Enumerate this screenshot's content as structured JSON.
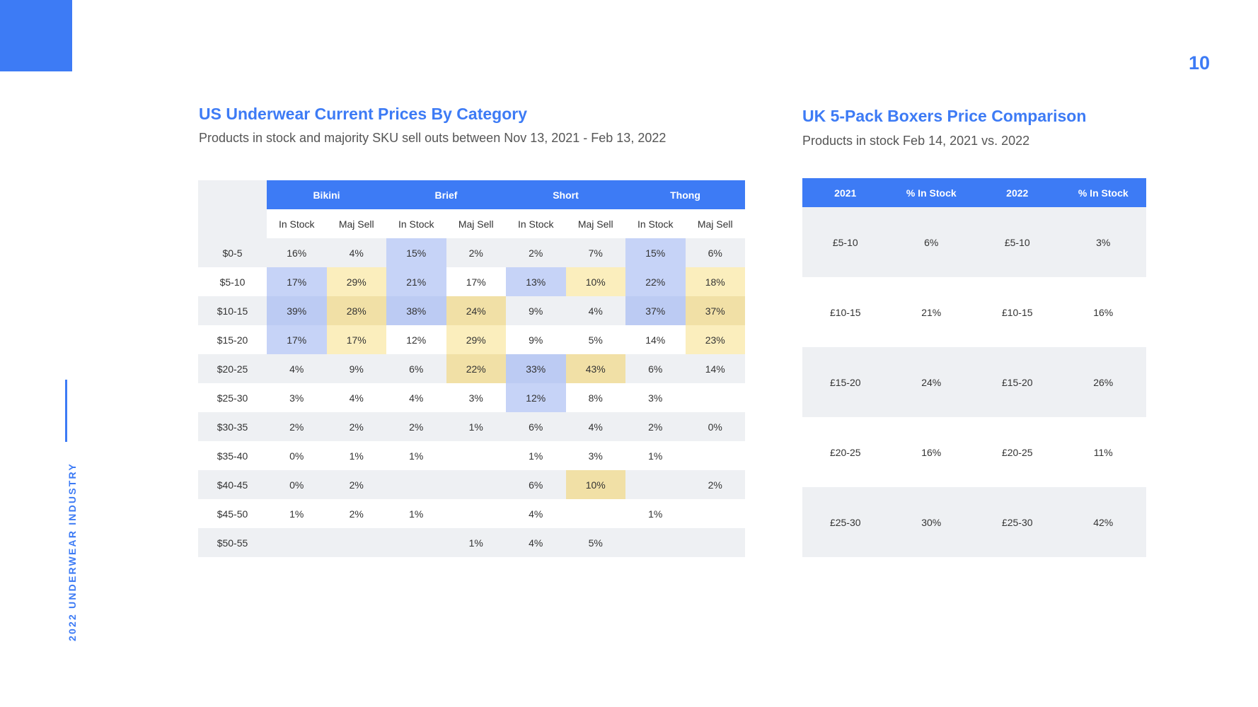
{
  "page": {
    "number": "10",
    "side_label": "2022 UNDERWEAR INDUSTRY",
    "accent": "#3d7bf5"
  },
  "us": {
    "title": "US Underwear Current Prices By Category",
    "subtitle": "Products in stock and majority SKU sell outs between Nov 13, 2021 - Feb 13, 2022",
    "categories": [
      "Bikini",
      "Brief",
      "Short",
      "Thong"
    ],
    "subheaders": [
      "In Stock",
      "Maj Sell",
      "In Stock",
      "Maj Sell",
      "In Stock",
      "Maj Sell",
      "In Stock",
      "Maj Sell"
    ],
    "rows": [
      {
        "label": "$0-5",
        "cells": [
          "16%",
          "4%",
          "15%",
          "2%",
          "2%",
          "7%",
          "15%",
          "6%"
        ]
      },
      {
        "label": "$5-10",
        "cells": [
          "17%",
          "29%",
          "21%",
          "17%",
          "13%",
          "10%",
          "22%",
          "18%"
        ]
      },
      {
        "label": "$10-15",
        "cells": [
          "39%",
          "28%",
          "38%",
          "24%",
          "9%",
          "4%",
          "37%",
          "37%"
        ]
      },
      {
        "label": "$15-20",
        "cells": [
          "17%",
          "17%",
          "12%",
          "29%",
          "9%",
          "5%",
          "14%",
          "23%"
        ]
      },
      {
        "label": "$20-25",
        "cells": [
          "4%",
          "9%",
          "6%",
          "22%",
          "33%",
          "43%",
          "6%",
          "14%"
        ]
      },
      {
        "label": "$25-30",
        "cells": [
          "3%",
          "4%",
          "4%",
          "3%",
          "12%",
          "8%",
          "3%",
          ""
        ]
      },
      {
        "label": "$30-35",
        "cells": [
          "2%",
          "2%",
          "2%",
          "1%",
          "6%",
          "4%",
          "2%",
          "0%"
        ]
      },
      {
        "label": "$35-40",
        "cells": [
          "0%",
          "1%",
          "1%",
          "",
          "1%",
          "3%",
          "1%",
          ""
        ]
      },
      {
        "label": "$40-45",
        "cells": [
          "0%",
          "2%",
          "",
          "",
          "6%",
          "10%",
          "",
          "2%"
        ]
      },
      {
        "label": "$45-50",
        "cells": [
          "1%",
          "2%",
          "1%",
          "",
          "4%",
          "",
          "1%",
          ""
        ]
      },
      {
        "label": "$50-55",
        "cells": [
          "",
          "",
          "",
          "1%",
          "4%",
          "5%",
          "",
          ""
        ]
      }
    ]
  },
  "uk": {
    "title": "UK 5-Pack Boxers Price Comparison",
    "subtitle": "Products in stock Feb 14, 2021 vs. 2022",
    "headers": [
      "2021",
      "% In Stock",
      "2022",
      "% In Stock"
    ],
    "rows": [
      [
        "£5-10",
        "6%",
        "£5-10",
        "3%"
      ],
      [
        "£10-15",
        "21%",
        "£10-15",
        "16%"
      ],
      [
        "£15-20",
        "24%",
        "£15-20",
        "26%"
      ],
      [
        "£20-25",
        "16%",
        "£20-25",
        "11%"
      ],
      [
        "£25-30",
        "30%",
        "£25-30",
        "42%"
      ]
    ]
  }
}
